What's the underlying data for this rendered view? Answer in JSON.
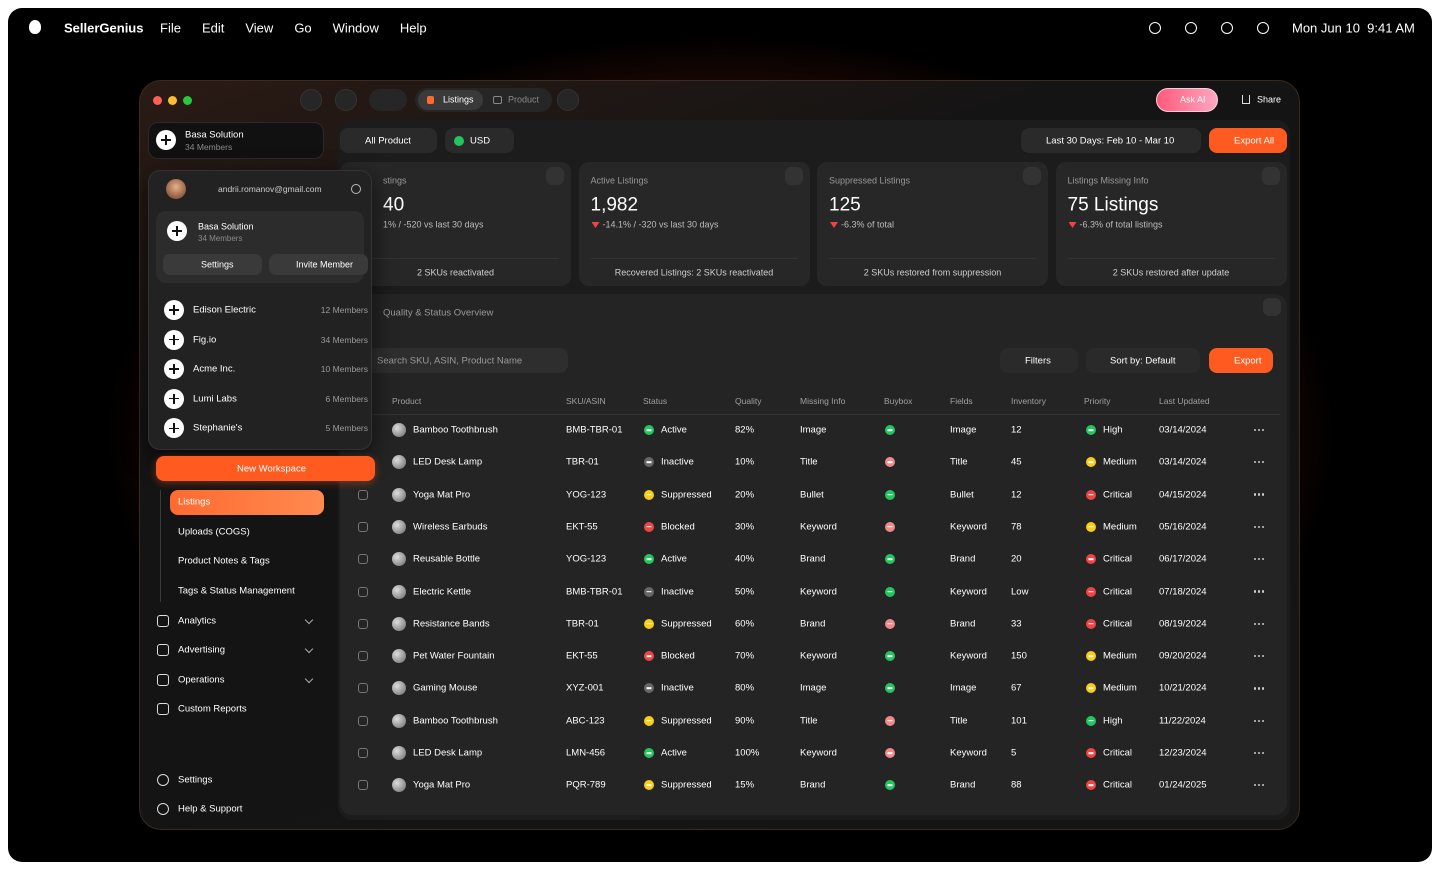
{
  "menubar": {
    "app": "SellerGenius",
    "menus": [
      "File",
      "Edit",
      "View",
      "Go",
      "Window",
      "Help"
    ],
    "clock": "Mon Jun 10  9:41 AM"
  },
  "toolbar": {
    "tabs": [
      "Listings",
      "Product"
    ],
    "ask_ai": "Ask AI",
    "share": "Share"
  },
  "sidebar": {
    "workspace": {
      "name": "Basa Solution",
      "members": "34 Members"
    },
    "menu": {
      "email": "andrii.romanov@gmail.com",
      "current": {
        "name": "Basa Solution",
        "members": "34 Members"
      },
      "settings": "Settings",
      "invite": "Invite Member",
      "workspaces": [
        {
          "name": "Edison Electric",
          "members": "12 Members"
        },
        {
          "name": "Fig.io",
          "members": "34 Members"
        },
        {
          "name": "Acme Inc.",
          "members": "10 Members"
        },
        {
          "name": "Lumi Labs",
          "members": "6 Members"
        },
        {
          "name": "Stephanie's",
          "members": "5 Members"
        }
      ],
      "new_workspace": "New Workspace"
    },
    "listings_nav": [
      "Listings",
      "Uploads (COGS)",
      "Product Notes & Tags",
      "Tags & Status Management"
    ],
    "sections": [
      "Analytics",
      "Advertising",
      "Operations",
      "Custom Reports"
    ],
    "footer": [
      "Settings",
      "Help & Support"
    ]
  },
  "filters": {
    "product": "All Product",
    "currency": "USD",
    "date_range": "Last 30 Days: Feb 10 - Mar 10",
    "export_all": "Export All"
  },
  "cards": [
    {
      "title": "stings",
      "value": "40",
      "change": "1% / -520 vs last 30 days",
      "footer": "2 SKUs reactivated"
    },
    {
      "title": "Active Listings",
      "value": "1,982",
      "change": "-14.1% / -320 vs last 30 days",
      "footer": "Recovered Listings: 2 SKUs reactivated"
    },
    {
      "title": "Suppressed Listings",
      "value": "125",
      "change": "-6.3% of total",
      "footer": "2 SKUs restored from suppression"
    },
    {
      "title": "Listings Missing Info",
      "value": "75 Listings",
      "change": "-6.3% of total listings",
      "footer": "2 SKUs restored after update"
    }
  ],
  "overview": {
    "title": "Quality & Status Overview",
    "search": "Search SKU, ASIN, Product Name",
    "filters": "Filters",
    "sort": "Sort by: Default",
    "export": "Export",
    "columns": [
      "Product",
      "SKU/ASIN",
      "Status",
      "Quality",
      "Missing Info",
      "Buybox",
      "Fields",
      "Inventory",
      "Priority",
      "Last Updated"
    ],
    "rows": [
      {
        "product": "Bamboo Toothbrush",
        "sku": "BMB-TBR-01",
        "status": "Active",
        "quality": "82%",
        "missing": "Image",
        "buybox": true,
        "fields": "Image",
        "inventory": "12",
        "priority": "High",
        "updated": "03/14/2024"
      },
      {
        "product": "LED Desk Lamp",
        "sku": "TBR-01",
        "status": "Inactive",
        "quality": "10%",
        "missing": "Title",
        "buybox": false,
        "fields": "Title",
        "inventory": "45",
        "priority": "Medium",
        "updated": "03/14/2024"
      },
      {
        "product": "Yoga Mat Pro",
        "sku": "YOG-123",
        "status": "Suppressed",
        "quality": "20%",
        "missing": "Bullet",
        "buybox": true,
        "fields": "Bullet",
        "inventory": "12",
        "priority": "Critical",
        "updated": "04/15/2024"
      },
      {
        "product": "Wireless Earbuds",
        "sku": "EKT-55",
        "status": "Blocked",
        "quality": "30%",
        "missing": "Keyword",
        "buybox": false,
        "fields": "Keyword",
        "inventory": "78",
        "priority": "Medium",
        "updated": "05/16/2024"
      },
      {
        "product": "Reusable Bottle",
        "sku": "YOG-123",
        "status": "Active",
        "quality": "40%",
        "missing": "Brand",
        "buybox": true,
        "fields": "Brand",
        "inventory": "20",
        "priority": "Critical",
        "updated": "06/17/2024"
      },
      {
        "product": "Electric Kettle",
        "sku": "BMB-TBR-01",
        "status": "Inactive",
        "quality": "50%",
        "missing": "Keyword",
        "buybox": true,
        "fields": "Keyword",
        "inventory": "Low",
        "priority": "Critical",
        "updated": "07/18/2024"
      },
      {
        "product": "Resistance Bands",
        "sku": "TBR-01",
        "status": "Suppressed",
        "quality": "60%",
        "missing": "Brand",
        "buybox": false,
        "fields": "Brand",
        "inventory": "33",
        "priority": "Critical",
        "updated": "08/19/2024"
      },
      {
        "product": "Pet Water Fountain",
        "sku": "EKT-55",
        "status": "Blocked",
        "quality": "70%",
        "missing": "Keyword",
        "buybox": true,
        "fields": "Keyword",
        "inventory": "150",
        "priority": "Medium",
        "updated": "09/20/2024"
      },
      {
        "product": "Gaming Mouse",
        "sku": "XYZ-001",
        "status": "Inactive",
        "quality": "80%",
        "missing": "Image",
        "buybox": true,
        "fields": "Image",
        "inventory": "67",
        "priority": "Medium",
        "updated": "10/21/2024"
      },
      {
        "product": "Bamboo Toothbrush",
        "sku": "ABC-123",
        "status": "Suppressed",
        "quality": "90%",
        "missing": "Title",
        "buybox": false,
        "fields": "Title",
        "inventory": "101",
        "priority": "High",
        "updated": "11/22/2024"
      },
      {
        "product": "LED Desk Lamp",
        "sku": "LMN-456",
        "status": "Active",
        "quality": "100%",
        "missing": "Keyword",
        "buybox": false,
        "fields": "Keyword",
        "inventory": "5",
        "priority": "Critical",
        "updated": "12/23/2024"
      },
      {
        "product": "Yoga Mat Pro",
        "sku": "PQR-789",
        "status": "Suppressed",
        "quality": "15%",
        "missing": "Brand",
        "buybox": true,
        "fields": "Brand",
        "inventory": "88",
        "priority": "Critical",
        "updated": "01/24/2025"
      }
    ]
  }
}
